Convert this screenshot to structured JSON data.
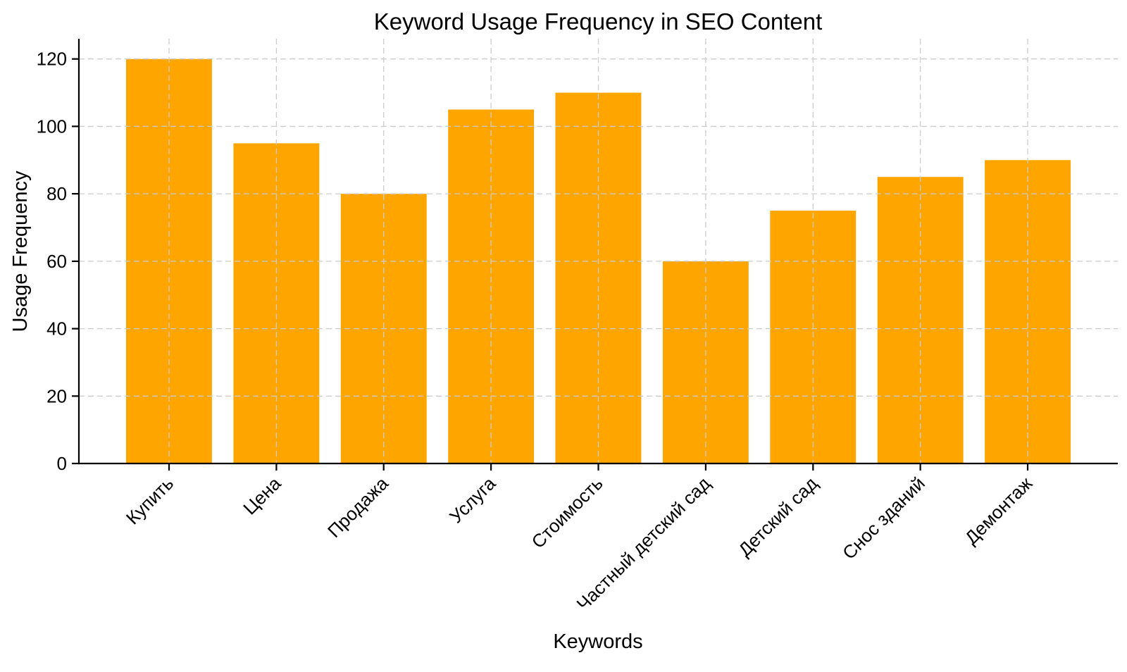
{
  "page": {
    "background_color": "#ffffff",
    "text_color": "#000000"
  },
  "chart_data": {
    "type": "bar",
    "title": "Keyword Usage Frequency in SEO Content",
    "xlabel": "Keywords",
    "ylabel": "Usage Frequency",
    "categories": [
      "Купить",
      "Цена",
      "Продажа",
      "Услуга",
      "Стоимость",
      "Частный детский сад",
      "Детский сад",
      "Снос зданий",
      "Демонтаж"
    ],
    "values": [
      120,
      95,
      80,
      105,
      110,
      60,
      75,
      85,
      90
    ],
    "yticks": [
      0,
      20,
      40,
      60,
      80,
      100,
      120
    ],
    "ylim": [
      0,
      126
    ],
    "bar_color": "#FFA500",
    "spine_color": "#000000",
    "grid": {
      "visible": true,
      "style": "dashed",
      "color": "#cccccc",
      "on_top_of_bars": true,
      "vertical_at_each_category": true
    },
    "x_tick_label_rotation_deg": 45,
    "legend_position": "none"
  }
}
